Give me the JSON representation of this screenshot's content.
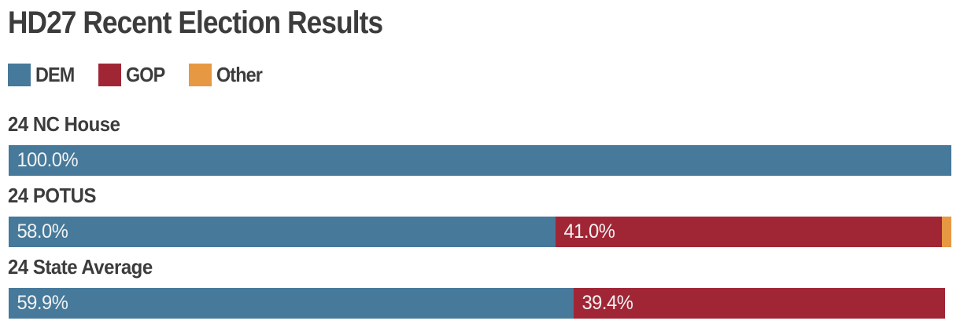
{
  "title": "HD27 Recent Election Results",
  "colors": {
    "dem": "#46799A",
    "gop": "#A02636",
    "other": "#E79842",
    "heading_text": "#3C3C3C",
    "bar_label_text": "#F2F2F2",
    "background": "#FFFFFF"
  },
  "legend": {
    "items": [
      {
        "label": "DEM",
        "color": "#46799A"
      },
      {
        "label": "GOP",
        "color": "#A02636"
      },
      {
        "label": "Other",
        "color": "#E79842"
      }
    ]
  },
  "chart_data": {
    "type": "bar",
    "orientation": "horizontal",
    "stacked": true,
    "unit": "percent",
    "xlim": [
      0,
      100
    ],
    "grid": false,
    "legend_position": "top-left",
    "title": "HD27 Recent Election Results",
    "categories": [
      "24 NC House",
      "24 POTUS",
      "24 State Average"
    ],
    "series": [
      {
        "name": "DEM",
        "color": "#46799A",
        "values": [
          100.0,
          58.0,
          59.9
        ]
      },
      {
        "name": "GOP",
        "color": "#A02636",
        "values": [
          0.0,
          41.0,
          39.4
        ]
      },
      {
        "name": "Other",
        "color": "#E79842",
        "values": [
          0.0,
          1.0,
          0.0
        ]
      }
    ],
    "rows": [
      {
        "label": "24 NC House",
        "segments": [
          {
            "party": "DEM",
            "value": 100.0,
            "text": "100.0%"
          }
        ]
      },
      {
        "label": "24 POTUS",
        "segments": [
          {
            "party": "DEM",
            "value": 58.0,
            "text": "58.0%"
          },
          {
            "party": "GOP",
            "value": 41.0,
            "text": "41.0%"
          },
          {
            "party": "Other",
            "value": 1.0,
            "text": ""
          }
        ]
      },
      {
        "label": "24 State Average",
        "segments": [
          {
            "party": "DEM",
            "value": 59.9,
            "text": "59.9%"
          },
          {
            "party": "GOP",
            "value": 39.4,
            "text": "39.4%"
          }
        ]
      }
    ]
  }
}
